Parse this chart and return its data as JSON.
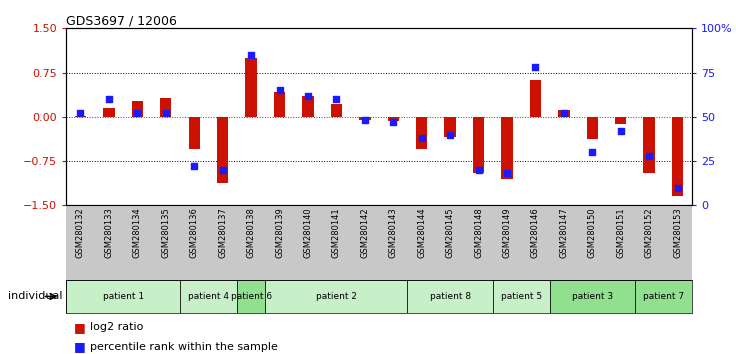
{
  "title": "GDS3697 / 12006",
  "samples": [
    "GSM280132",
    "GSM280133",
    "GSM280134",
    "GSM280135",
    "GSM280136",
    "GSM280137",
    "GSM280138",
    "GSM280139",
    "GSM280140",
    "GSM280141",
    "GSM280142",
    "GSM280143",
    "GSM280144",
    "GSM280145",
    "GSM280148",
    "GSM280149",
    "GSM280146",
    "GSM280147",
    "GSM280150",
    "GSM280151",
    "GSM280152",
    "GSM280153"
  ],
  "log2_ratio": [
    0.02,
    0.15,
    0.27,
    0.32,
    -0.55,
    -1.12,
    1.0,
    0.42,
    0.35,
    0.22,
    -0.05,
    -0.07,
    -0.55,
    -0.35,
    -0.95,
    -1.05,
    0.62,
    0.12,
    -0.38,
    -0.12,
    -0.95,
    -1.35
  ],
  "percentile": [
    52,
    60,
    52,
    52,
    22,
    20,
    85,
    65,
    62,
    60,
    48,
    47,
    38,
    40,
    20,
    18,
    78,
    52,
    30,
    42,
    28,
    10
  ],
  "groups": [
    {
      "label": "patient 1",
      "start": 0,
      "end": 4,
      "color": "#c8f0c8"
    },
    {
      "label": "patient 4",
      "start": 4,
      "end": 6,
      "color": "#c8f0c8"
    },
    {
      "label": "patient 6",
      "start": 6,
      "end": 7,
      "color": "#90e090"
    },
    {
      "label": "patient 2",
      "start": 7,
      "end": 12,
      "color": "#c8f0c8"
    },
    {
      "label": "patient 8",
      "start": 12,
      "end": 15,
      "color": "#c8f0c8"
    },
    {
      "label": "patient 5",
      "start": 15,
      "end": 17,
      "color": "#c8f0c8"
    },
    {
      "label": "patient 3",
      "start": 17,
      "end": 20,
      "color": "#90e090"
    },
    {
      "label": "patient 7",
      "start": 20,
      "end": 22,
      "color": "#90e090"
    }
  ],
  "ylim": [
    -1.5,
    1.5
  ],
  "yticks_left": [
    -1.5,
    -0.75,
    0,
    0.75,
    1.5
  ],
  "right_labels": [
    "0",
    "25",
    "50",
    "75",
    "100%"
  ],
  "hlines_black": [
    0.75,
    -0.75
  ],
  "bar_color": "#cc1100",
  "dot_color": "#1a1aff",
  "bar_color_legend": "#cc1100",
  "dot_color_legend": "#1a1aff",
  "left_tick_color": "#cc1100",
  "right_tick_color": "#1a1aff",
  "xtick_bg": "#c8c8c8",
  "figure_bg": "#ffffff"
}
